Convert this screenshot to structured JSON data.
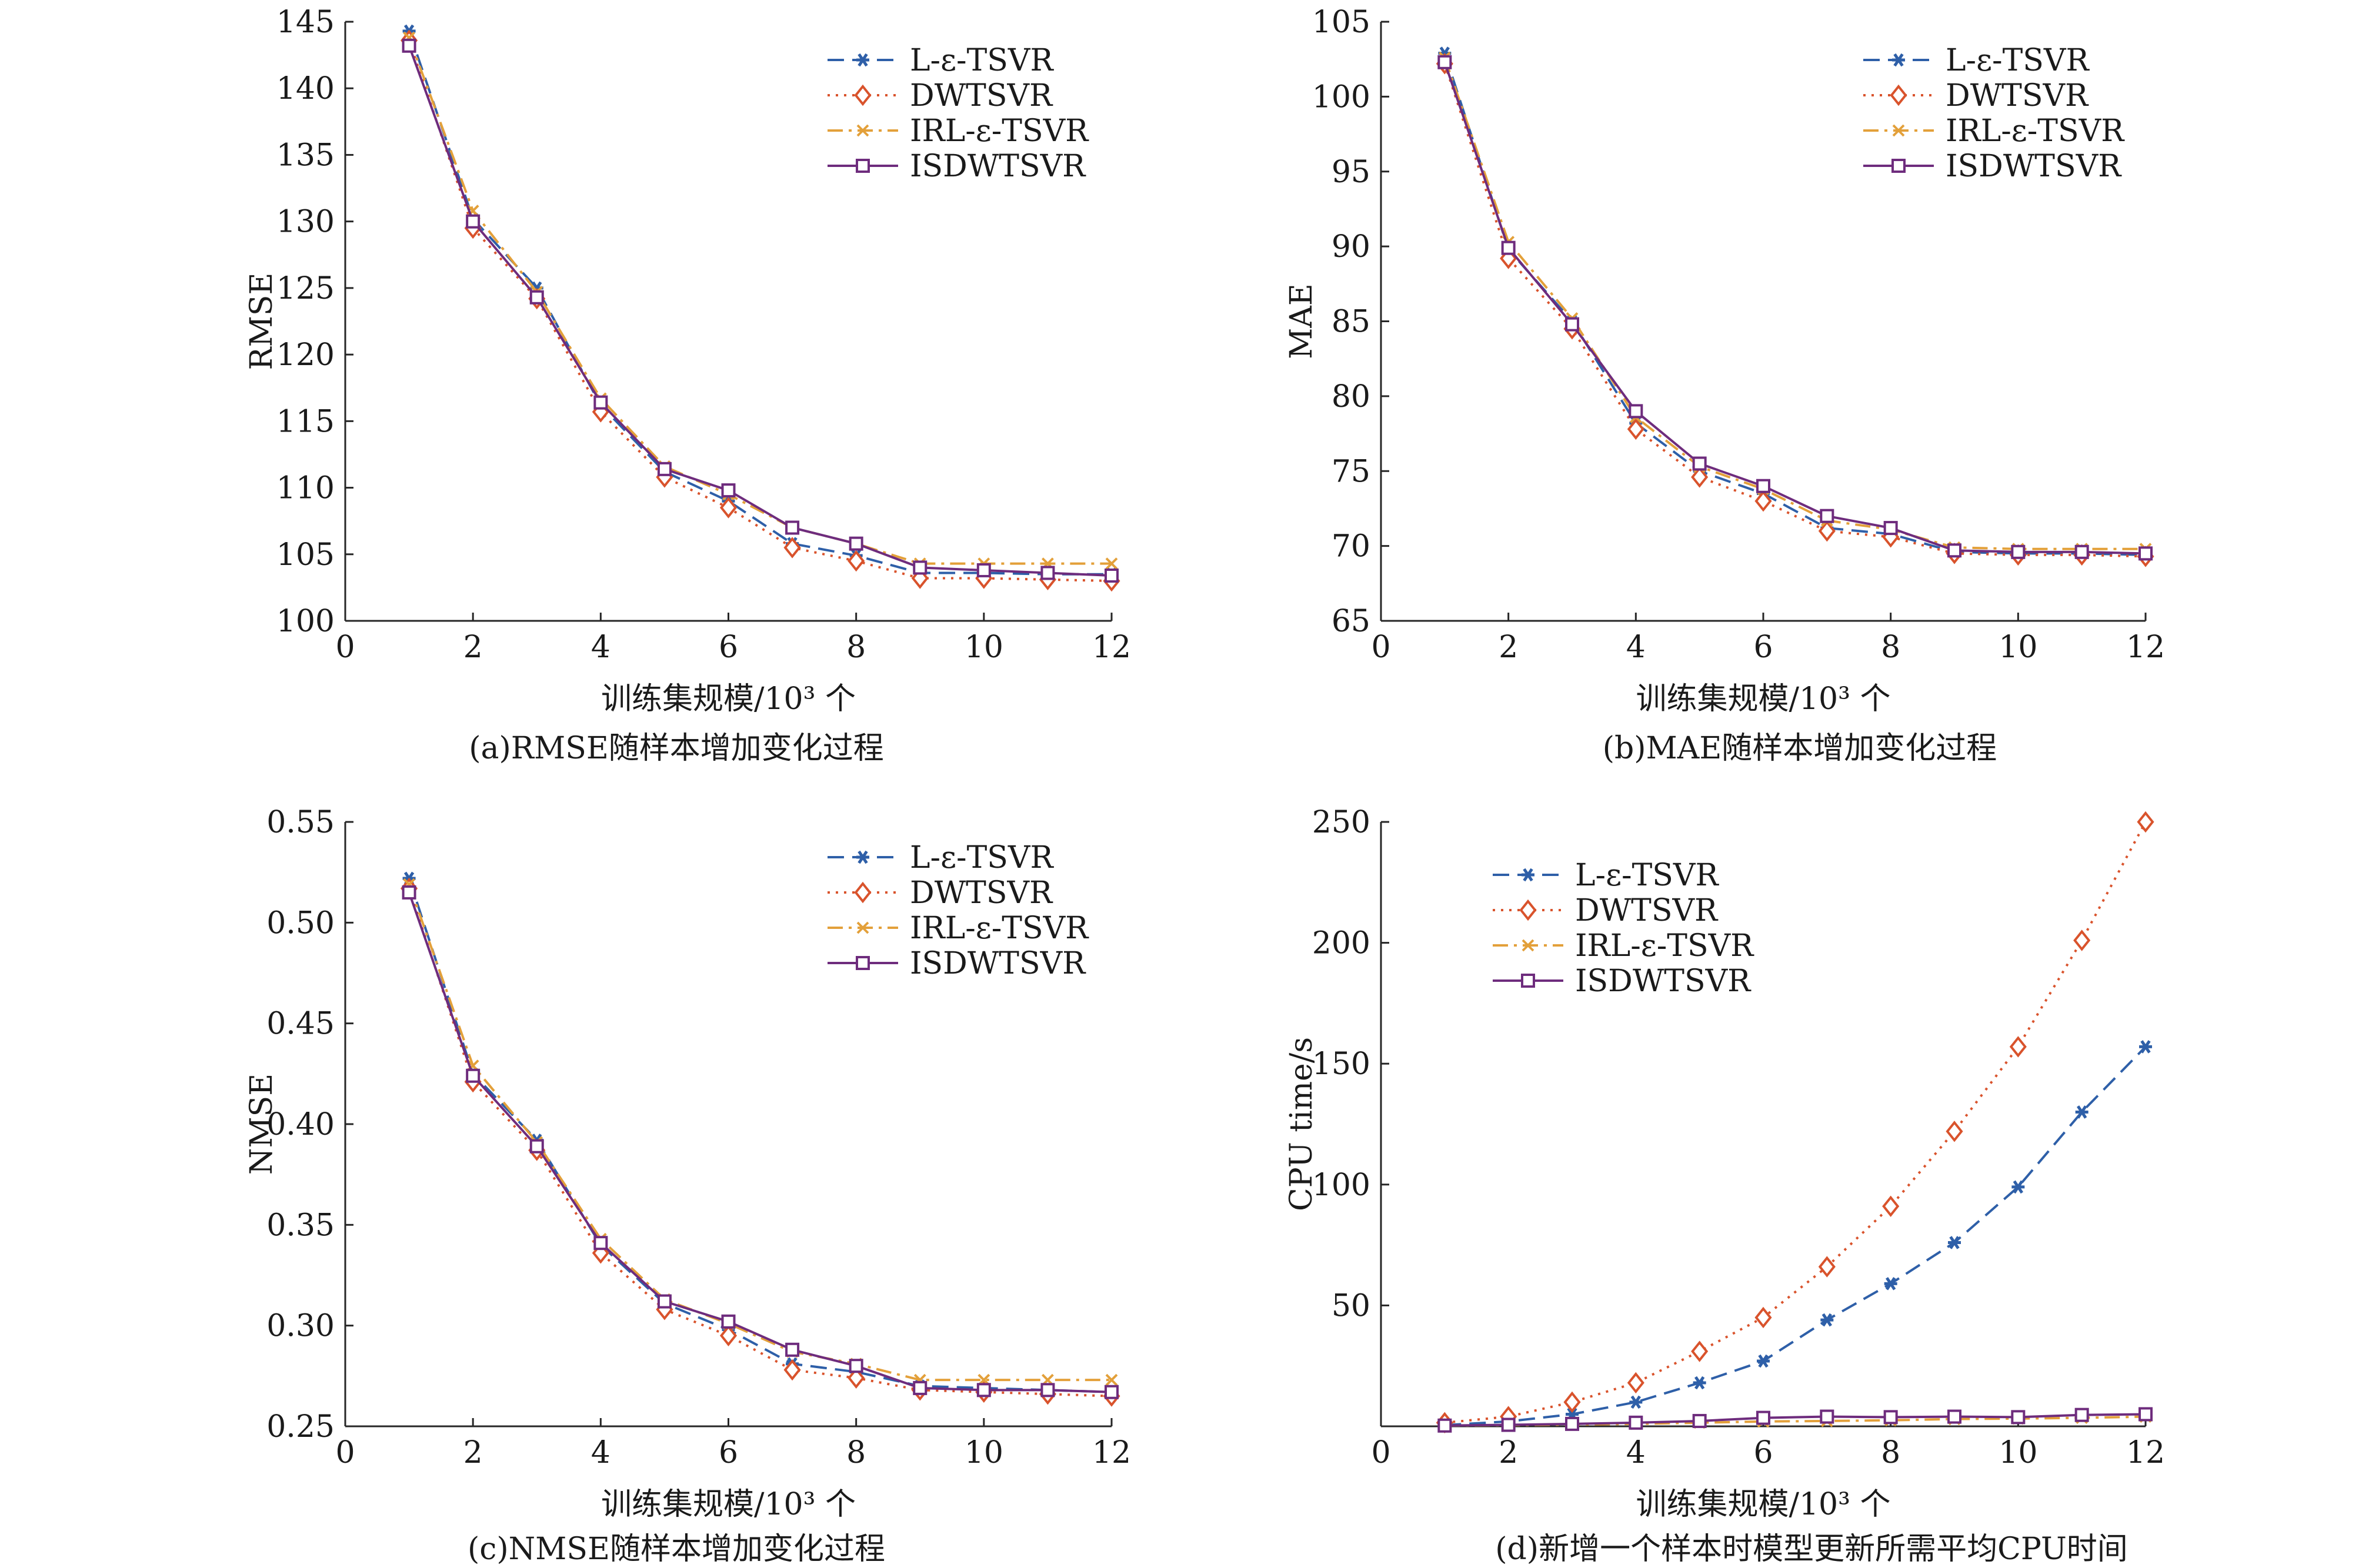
{
  "chart_data": [
    {
      "id": "a",
      "type": "line",
      "caption": "(a)RMSE随样本增加变化过程",
      "xlabel": "训练集规模/10³ 个",
      "ylabel": "RMSE",
      "xlim": [
        0,
        12
      ],
      "ylim": [
        100,
        145
      ],
      "xticks": [
        0,
        2,
        4,
        6,
        8,
        10,
        12
      ],
      "yticks": [
        100,
        105,
        110,
        115,
        120,
        125,
        130,
        135,
        140,
        145
      ],
      "legend_position": "top-right",
      "x": [
        1,
        2,
        3,
        4,
        5,
        6,
        7,
        8,
        9,
        10,
        11,
        12
      ],
      "series": [
        {
          "name": "L-ε-TSVR",
          "color": "#2E5FA8",
          "dash": "28 14",
          "marker": "asterisk",
          "values": [
            144.3,
            130.2,
            125.0,
            116.2,
            111.2,
            109.0,
            105.8,
            104.9,
            103.6,
            103.6,
            103.5,
            103.5
          ]
        },
        {
          "name": "DWTSVR",
          "color": "#D9532C",
          "dash": "4 10",
          "marker": "diamond",
          "values": [
            143.6,
            129.5,
            124.2,
            115.7,
            110.8,
            108.5,
            105.5,
            104.5,
            103.2,
            103.2,
            103.1,
            103.0
          ]
        },
        {
          "name": "IRL-ε-TSVR",
          "color": "#E3A03A",
          "dash": "26 10 5 10",
          "marker": "x",
          "values": [
            143.8,
            130.8,
            124.7,
            116.7,
            111.6,
            109.5,
            107.0,
            105.8,
            104.3,
            104.3,
            104.3,
            104.3
          ]
        },
        {
          "name": "ISDWTSVR",
          "color": "#6E2C7D",
          "dash": "",
          "marker": "square",
          "values": [
            143.2,
            130.0,
            124.3,
            116.4,
            111.4,
            109.8,
            107.0,
            105.8,
            104.0,
            103.8,
            103.6,
            103.4
          ]
        }
      ]
    },
    {
      "id": "b",
      "type": "line",
      "caption": "(b)MAE随样本增加变化过程",
      "xlabel": "训练集规模/10³ 个",
      "ylabel": "MAE",
      "xlim": [
        0,
        12
      ],
      "ylim": [
        65,
        105
      ],
      "xticks": [
        0,
        2,
        4,
        6,
        8,
        10,
        12
      ],
      "yticks": [
        65,
        70,
        75,
        80,
        85,
        90,
        95,
        100,
        105
      ],
      "legend_position": "top-right",
      "x": [
        1,
        2,
        3,
        4,
        5,
        6,
        7,
        8,
        9,
        10,
        11,
        12
      ],
      "series": [
        {
          "name": "L-ε-TSVR",
          "color": "#2E5FA8",
          "dash": "28 14",
          "marker": "asterisk",
          "values": [
            102.9,
            89.8,
            85.0,
            78.2,
            75.0,
            73.5,
            71.2,
            70.8,
            69.6,
            69.5,
            69.5,
            69.4
          ]
        },
        {
          "name": "DWTSVR",
          "color": "#D9532C",
          "dash": "4 10",
          "marker": "diamond",
          "values": [
            102.2,
            89.2,
            84.5,
            77.8,
            74.6,
            73.0,
            71.0,
            70.6,
            69.5,
            69.4,
            69.4,
            69.3
          ]
        },
        {
          "name": "IRL-ε-TSVR",
          "color": "#E3A03A",
          "dash": "26 10 5 10",
          "marker": "x",
          "values": [
            102.6,
            90.3,
            85.2,
            78.6,
            75.3,
            73.8,
            71.7,
            71.1,
            69.9,
            69.8,
            69.8,
            69.8
          ]
        },
        {
          "name": "ISDWTSVR",
          "color": "#6E2C7D",
          "dash": "",
          "marker": "square",
          "values": [
            102.3,
            89.9,
            84.8,
            79.0,
            75.5,
            74.0,
            72.0,
            71.2,
            69.7,
            69.6,
            69.6,
            69.5
          ]
        }
      ]
    },
    {
      "id": "c",
      "type": "line",
      "caption": "(c)NMSE随样本增加变化过程",
      "xlabel": "训练集规模/10³ 个",
      "ylabel": "NMSE",
      "xlim": [
        0,
        12
      ],
      "ylim": [
        0.25,
        0.55
      ],
      "xticks": [
        0,
        2,
        4,
        6,
        8,
        10,
        12
      ],
      "yticks": [
        0.25,
        0.3,
        0.35,
        0.4,
        0.45,
        0.5,
        0.55
      ],
      "yticks_labels": [
        "0.25",
        "0.30",
        "0.35",
        "0.40",
        "0.45",
        "0.50",
        "0.55"
      ],
      "legend_position": "top-right",
      "x": [
        1,
        2,
        3,
        4,
        5,
        6,
        7,
        8,
        9,
        10,
        11,
        12
      ],
      "series": [
        {
          "name": "L-ε-TSVR",
          "color": "#2E5FA8",
          "dash": "28 14",
          "marker": "asterisk",
          "values": [
            0.522,
            0.425,
            0.392,
            0.34,
            0.311,
            0.298,
            0.281,
            0.277,
            0.27,
            0.269,
            0.268,
            0.267
          ]
        },
        {
          "name": "DWTSVR",
          "color": "#D9532C",
          "dash": "4 10",
          "marker": "diamond",
          "values": [
            0.517,
            0.421,
            0.387,
            0.336,
            0.308,
            0.295,
            0.278,
            0.274,
            0.268,
            0.267,
            0.266,
            0.265
          ]
        },
        {
          "name": "IRL-ε-TSVR",
          "color": "#E3A03A",
          "dash": "26 10 5 10",
          "marker": "x",
          "values": [
            0.519,
            0.429,
            0.391,
            0.343,
            0.313,
            0.301,
            0.287,
            0.281,
            0.273,
            0.273,
            0.273,
            0.273
          ]
        },
        {
          "name": "ISDWTSVR",
          "color": "#6E2C7D",
          "dash": "",
          "marker": "square",
          "values": [
            0.515,
            0.424,
            0.389,
            0.341,
            0.312,
            0.302,
            0.288,
            0.28,
            0.269,
            0.268,
            0.268,
            0.267
          ]
        }
      ]
    },
    {
      "id": "d",
      "type": "line",
      "caption": "(d)新增一个样本时模型更新所需平均CPU时间",
      "xlabel": "训练集规模/10³ 个",
      "ylabel": "CPU time/s",
      "xlim": [
        0,
        12
      ],
      "ylim": [
        0,
        250
      ],
      "xticks": [
        0,
        2,
        4,
        6,
        8,
        10,
        12
      ],
      "yticks": [
        50,
        100,
        150,
        200,
        250
      ],
      "legend_position": "top-left",
      "x": [
        1,
        2,
        3,
        4,
        5,
        6,
        7,
        8,
        9,
        10,
        11,
        12
      ],
      "series": [
        {
          "name": "L-ε-TSVR",
          "color": "#2E5FA8",
          "dash": "28 14",
          "marker": "asterisk",
          "values": [
            0.5,
            2,
            5,
            10,
            18,
            27,
            44,
            59,
            76,
            99,
            130,
            157
          ]
        },
        {
          "name": "DWTSVR",
          "color": "#D9532C",
          "dash": "4 10",
          "marker": "diamond",
          "values": [
            1.5,
            4,
            10,
            18,
            31,
            45,
            66,
            91,
            122,
            157,
            201,
            250
          ]
        },
        {
          "name": "IRL-ε-TSVR",
          "color": "#E3A03A",
          "dash": "26 10 5 10",
          "marker": "x",
          "values": [
            0.3,
            0.5,
            0.7,
            1,
            1.5,
            2,
            2.2,
            2.5,
            3,
            3.2,
            3.5,
            4
          ]
        },
        {
          "name": "ISDWTSVR",
          "color": "#6E2C7D",
          "dash": "",
          "marker": "square",
          "values": [
            0.3,
            0.6,
            1,
            1.5,
            2.2,
            3.5,
            4,
            3.8,
            4,
            3.8,
            4.7,
            5
          ]
        }
      ]
    }
  ]
}
